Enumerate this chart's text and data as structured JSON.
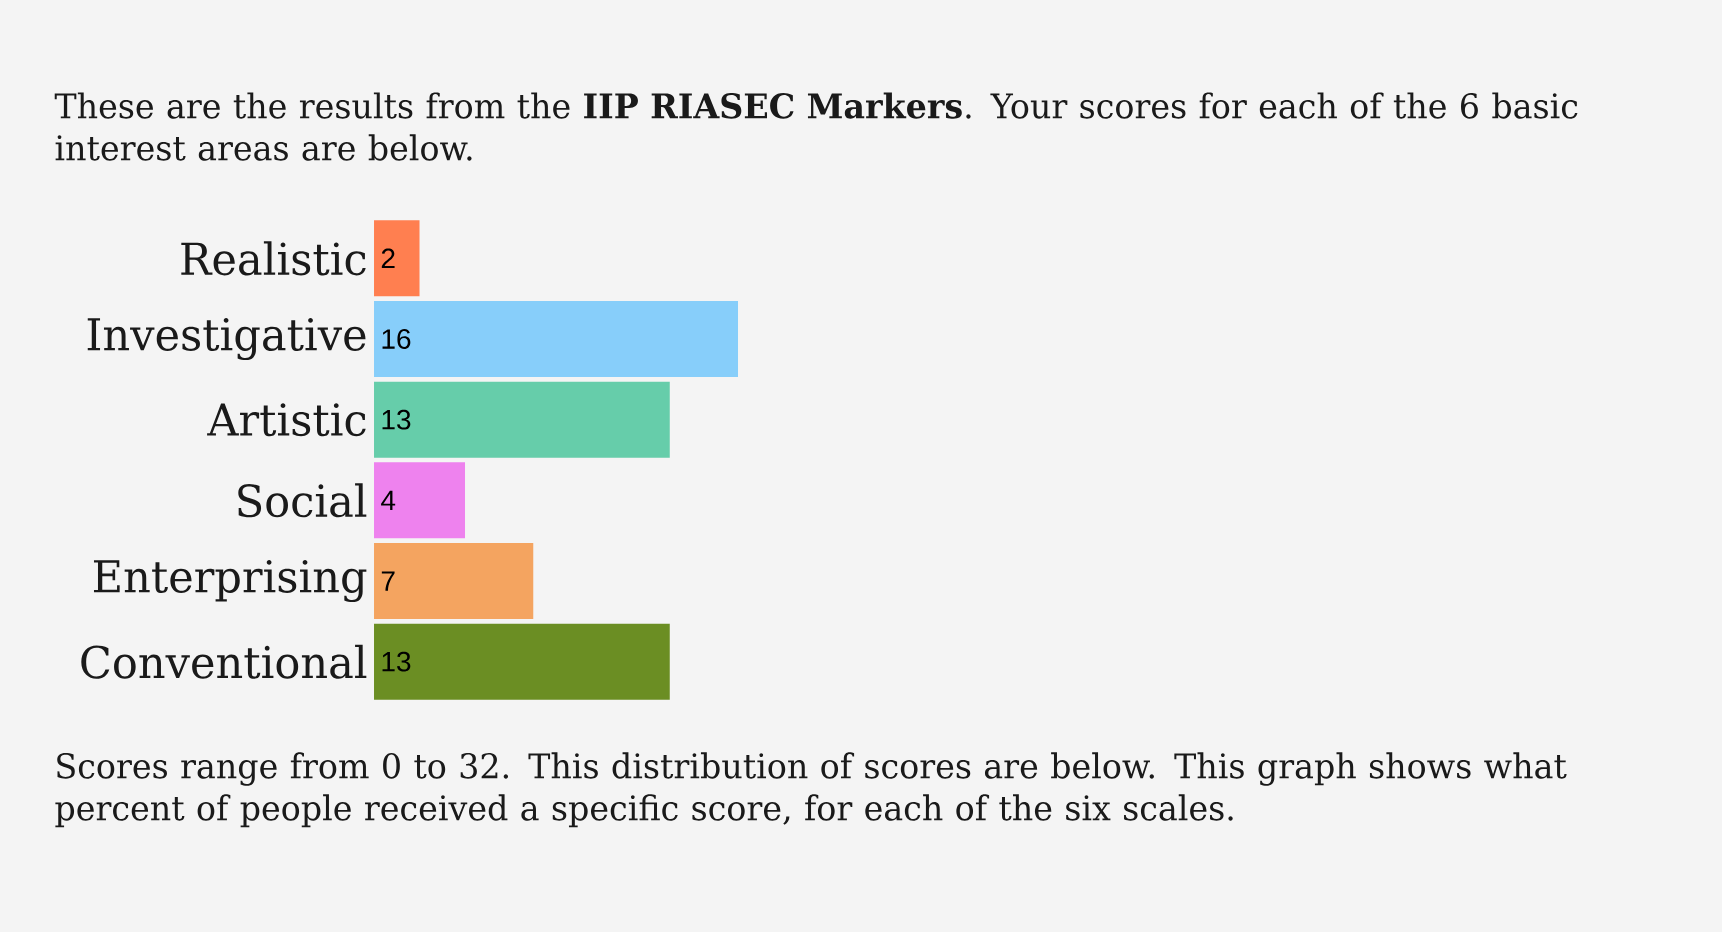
{
  "chart_data": {
    "type": "bar",
    "orientation": "horizontal",
    "title": "These are the results from the **IIP RIASEC Markers**. Your scores for each of the 6 basic interest areas are below.",
    "categories": [
      "Realistic",
      "Investigative",
      "Artistic",
      "Social",
      "Enterprising",
      "Conventional"
    ],
    "values": [
      2,
      16,
      13,
      4,
      7,
      13
    ],
    "colors": [
      "#ff7f50",
      "#87cefa",
      "#66cdaa",
      "#ee82ee",
      "#f4a460",
      "#6b8e23"
    ],
    "data_labels": true,
    "annotations": [
      "Scores range from 0 to 32. This distribution of scores are below. This graph shows what percent of people received a specific score, for each of the six scales."
    ]
  }
}
